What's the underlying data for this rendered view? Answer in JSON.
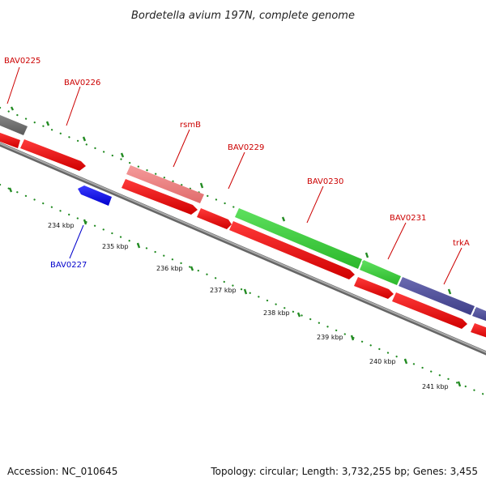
{
  "title": "Bordetella avium 197N, complete genome",
  "footer": {
    "accession": "Accession: NC_010645",
    "stats": "Topology: circular; Length: 3,732,255 bp; Genes: 3,455"
  },
  "colors": {
    "label_red": "#cc0000",
    "label_blue": "#0000cc",
    "dots": "#228b22",
    "backbone": "#888888"
  },
  "labels": [
    {
      "id": "BAV0225",
      "text": "BAV0225",
      "color": "#cc0000"
    },
    {
      "id": "BAV0226",
      "text": "BAV0226",
      "color": "#cc0000"
    },
    {
      "id": "rsmB",
      "text": "rsmB",
      "color": "#cc0000"
    },
    {
      "id": "BAV0229",
      "text": "BAV0229",
      "color": "#cc0000"
    },
    {
      "id": "BAV0230",
      "text": "BAV0230",
      "color": "#cc0000"
    },
    {
      "id": "BAV0231",
      "text": "BAV0231",
      "color": "#cc0000"
    },
    {
      "id": "trkA",
      "text": "trkA",
      "color": "#cc0000"
    },
    {
      "id": "BAV0227",
      "text": "BAV0227",
      "color": "#0000cc"
    }
  ],
  "ticks": [
    "234 kbp",
    "235 kbp",
    "236 kbp",
    "237 kbp",
    "238 kbp",
    "239 kbp",
    "240 kbp",
    "241 kbp"
  ]
}
